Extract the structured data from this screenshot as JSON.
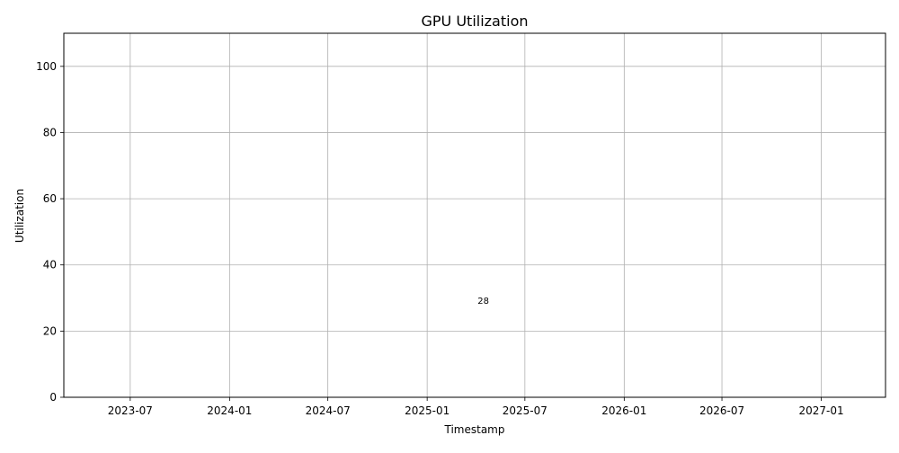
{
  "chart_data": {
    "type": "bar",
    "title": "GPU Utilization",
    "xlabel": "Timestamp",
    "ylabel": "Utilization",
    "x_axis_type": "date",
    "xlim": [
      "2023-02-28",
      "2027-04-30"
    ],
    "ylim": [
      0,
      110
    ],
    "grid": true,
    "x_ticks": [
      "2023-07",
      "2024-01",
      "2024-07",
      "2025-01",
      "2025-07",
      "2026-01",
      "2026-07",
      "2027-01"
    ],
    "y_ticks": [
      0,
      20,
      40,
      60,
      80,
      100
    ],
    "points": [
      {
        "x": "2025-04-15",
        "y": 28,
        "label": "28"
      }
    ],
    "colors": {
      "grid": "#b0b0b0",
      "axes": "#000000",
      "bar": "#1f77b4"
    }
  }
}
